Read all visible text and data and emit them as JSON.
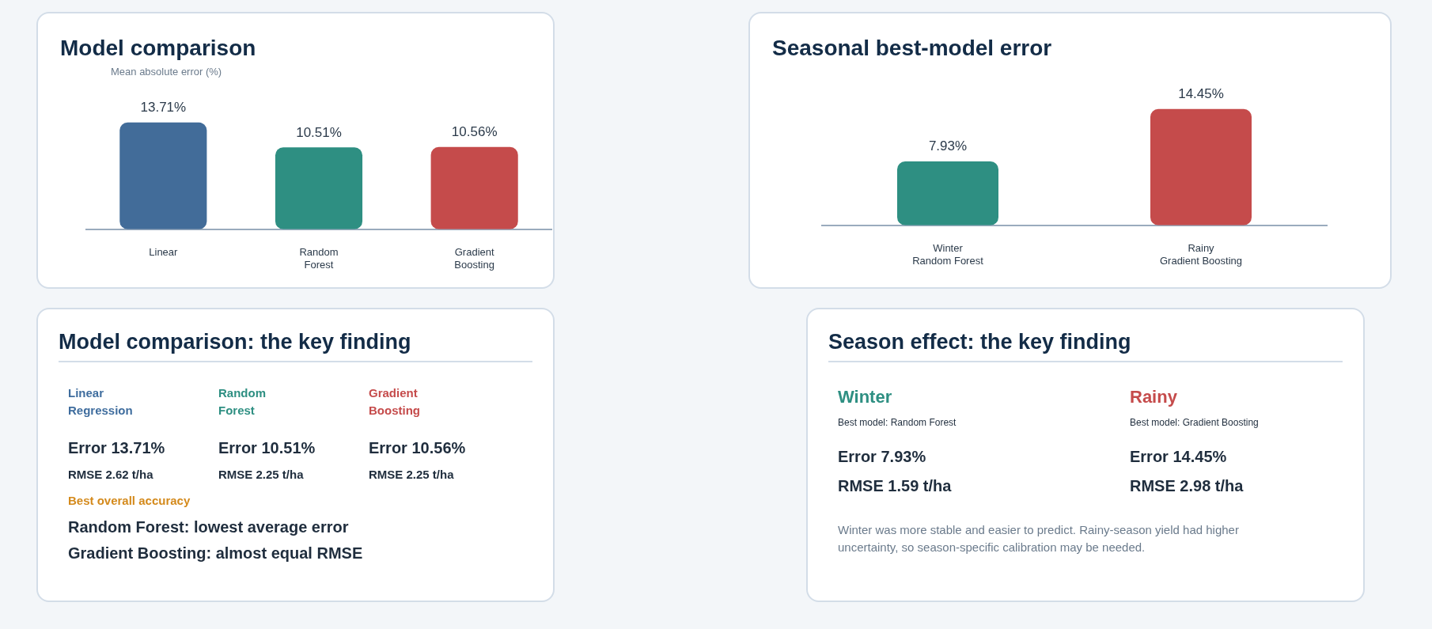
{
  "chart_data": [
    {
      "type": "bar",
      "title": "Model comparison",
      "subtitle": "Mean absolute error (%)",
      "categories": [
        "Linear",
        "Random\nForest",
        "Gradient\nBoosting"
      ],
      "values": [
        13.71,
        10.51,
        10.56
      ],
      "colors": [
        "#426c99",
        "#2e8f82",
        "#c54b4b"
      ],
      "value_labels": [
        "13.71%",
        "10.51%",
        "10.56%"
      ],
      "tick_labels": "x"
    },
    {
      "type": "bar",
      "title": "Seasonal best-model error",
      "categories": [
        "Winter\nRandom Forest",
        "Rainy\nGradient Boosting"
      ],
      "values": [
        7.93,
        14.45
      ],
      "colors": [
        "#2e8f82",
        "#c54b4b"
      ],
      "value_labels": [
        "7.93%",
        "14.45%"
      ],
      "tick_labels": "x"
    },
    {
      "type": "other",
      "title": "Model comparison: the key finding",
      "annotations": [
        "Linear Regression",
        "Random Forest",
        "Gradient Boosting",
        "Error 13.71%",
        "Error 10.51%",
        "Error 10.56%",
        "RMSE 2.62 t/ha",
        "RMSE 2.25 t/ha",
        "RMSE 2.25 t/ha",
        "Best overall accuracy",
        "Random Forest: lowest average error",
        "Gradient Boosting: almost equal RMSE"
      ]
    },
    {
      "type": "other",
      "title": "Season effect: the key finding",
      "annotations": [
        "Winter",
        "Rainy",
        "Best model: Random Forest",
        "Best model: Gradient Boosting",
        "Error 7.93%",
        "Error 14.45%",
        "RMSE 1.59 t/ha",
        "RMSE 2.98 t/ha",
        "Winter was more stable and easier to predict. Rainy-season yield had higher uncertainty, so season-specific calibration may be needed."
      ]
    }
  ]
}
